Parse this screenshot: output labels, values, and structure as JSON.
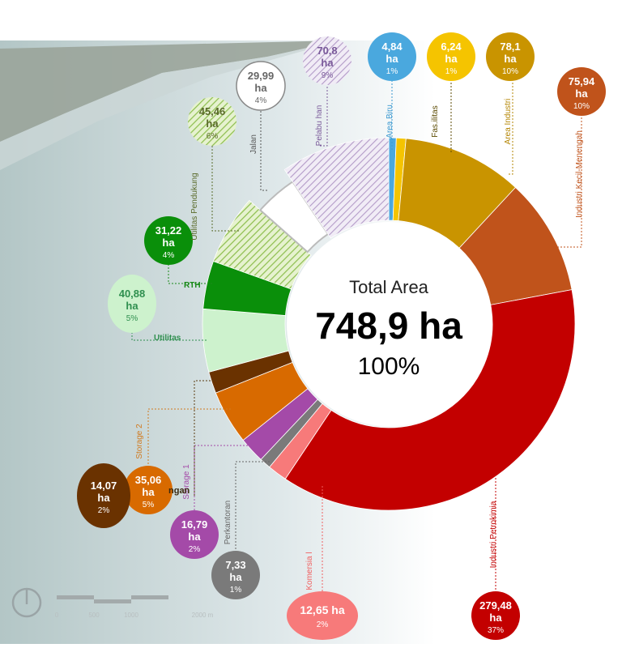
{
  "chart_data": {
    "type": "pie",
    "center": {
      "label": "Total Area",
      "total": "748,9 ha",
      "percent": "100%"
    },
    "slices": [
      {
        "name": "Area Biru",
        "value": "4,84",
        "unit": "ha",
        "percent": "1%",
        "color": "#4aa8de",
        "pattern": "solid",
        "label_color": "#3a98d0"
      },
      {
        "name": "Fas.ilitas",
        "value": "6,24",
        "unit": "ha",
        "percent": "1%",
        "color": "#f5c400",
        "pattern": "solid",
        "label_color": "#5b4a00"
      },
      {
        "name": "Area Industri",
        "value": "78,1",
        "unit": "ha",
        "percent": "10%",
        "color": "#c99400",
        "pattern": "solid",
        "label_color": "#b38400"
      },
      {
        "name": "Industri Kecil-Menengah",
        "value": "75,94",
        "unit": "ha",
        "percent": "10%",
        "color": "#c0531b",
        "pattern": "solid",
        "label_color": "#c0531b"
      },
      {
        "name": "Industri Petrokimia",
        "value": "279,48",
        "unit": "ha",
        "percent": "37%",
        "color": "#c30000",
        "pattern": "solid",
        "label_color": "#c30000"
      },
      {
        "name": "Komersia l",
        "value": "12,65 ha",
        "unit": "",
        "percent": "2%",
        "color": "#f77a7a",
        "pattern": "solid",
        "label_color": "#f06060"
      },
      {
        "name": "Perkantoran",
        "value": "7,33",
        "unit": "ha",
        "percent": "1%",
        "color": "#7a7a7a",
        "pattern": "solid",
        "label_color": "#666666"
      },
      {
        "name": "Storage 1",
        "value": "16,79",
        "unit": "ha",
        "percent": "2%",
        "color": "#a44aa8",
        "pattern": "solid",
        "label_color": "#a44aa8"
      },
      {
        "name": "Storage 2",
        "value": "35,06",
        "unit": "ha",
        "percent": "5%",
        "color": "#d86a00",
        "pattern": "solid",
        "label_color": "#d07a20"
      },
      {
        "name": "",
        "value": "14,07",
        "unit": "ha",
        "percent": "2%",
        "color": "#6a3200",
        "pattern": "solid",
        "label_color": "#5a3a10"
      },
      {
        "name": "Utilitas",
        "value": "40,88",
        "unit": "ha",
        "percent": "5%",
        "color": "#cdf2cd",
        "pattern": "solid",
        "label_color": "#2f8f4f"
      },
      {
        "name": "RTH",
        "value": "31,22",
        "unit": "ha",
        "percent": "4%",
        "color": "#0a8f0a",
        "pattern": "solid",
        "label_color": "#1a8a1a"
      },
      {
        "name": "Utilitas Pendukung",
        "value": "45,46",
        "unit": "ha",
        "percent": "6%",
        "color": "#8fbf50",
        "pattern": "hatch",
        "label_color": "#5a6a2a"
      },
      {
        "name": "Jalan",
        "value": "29,99",
        "unit": "ha",
        "percent": "4%",
        "color": "#ffffff",
        "pattern": "white",
        "label_color": "#555555"
      },
      {
        "name": "Pelabu han",
        "value": "70,8",
        "unit": "ha",
        "percent": "9%",
        "color": "#b39bc8",
        "pattern": "hatch",
        "label_color": "#7a5a9a"
      }
    ],
    "partial_label": "ngan",
    "scale_bar": {
      "ticks": [
        "0",
        "500",
        "1000",
        "2000 m"
      ]
    }
  }
}
